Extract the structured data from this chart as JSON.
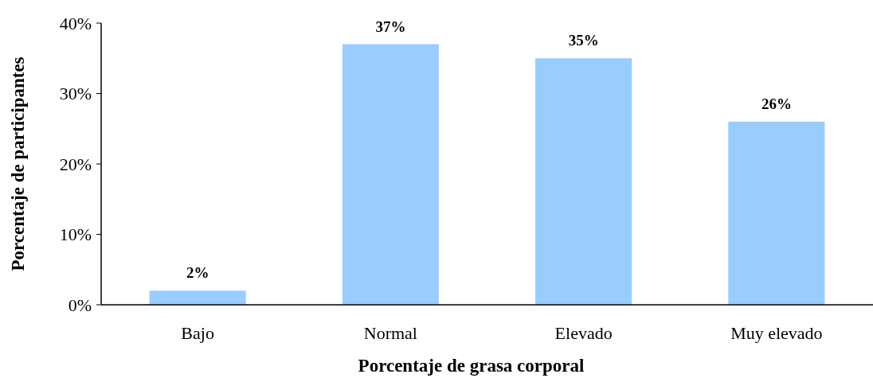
{
  "chart_data": {
    "type": "bar",
    "xlabel": "Porcentaje de grasa corporal",
    "ylabel": "Porcentaje de participantes",
    "categories": [
      "Bajo",
      "Normal",
      "Elevado",
      "Muy elevado"
    ],
    "values": [
      2,
      37,
      35,
      26
    ],
    "value_labels": [
      "2%",
      "37%",
      "35%",
      "26%"
    ],
    "color": "#99ccff",
    "ylim": [
      0,
      40
    ],
    "yticks": [
      {
        "value": 0,
        "label": "0%"
      },
      {
        "value": 10,
        "label": "10%"
      },
      {
        "value": 20,
        "label": "20%"
      },
      {
        "value": 30,
        "label": "30%"
      },
      {
        "value": 40,
        "label": "40%"
      }
    ],
    "grid": false
  }
}
